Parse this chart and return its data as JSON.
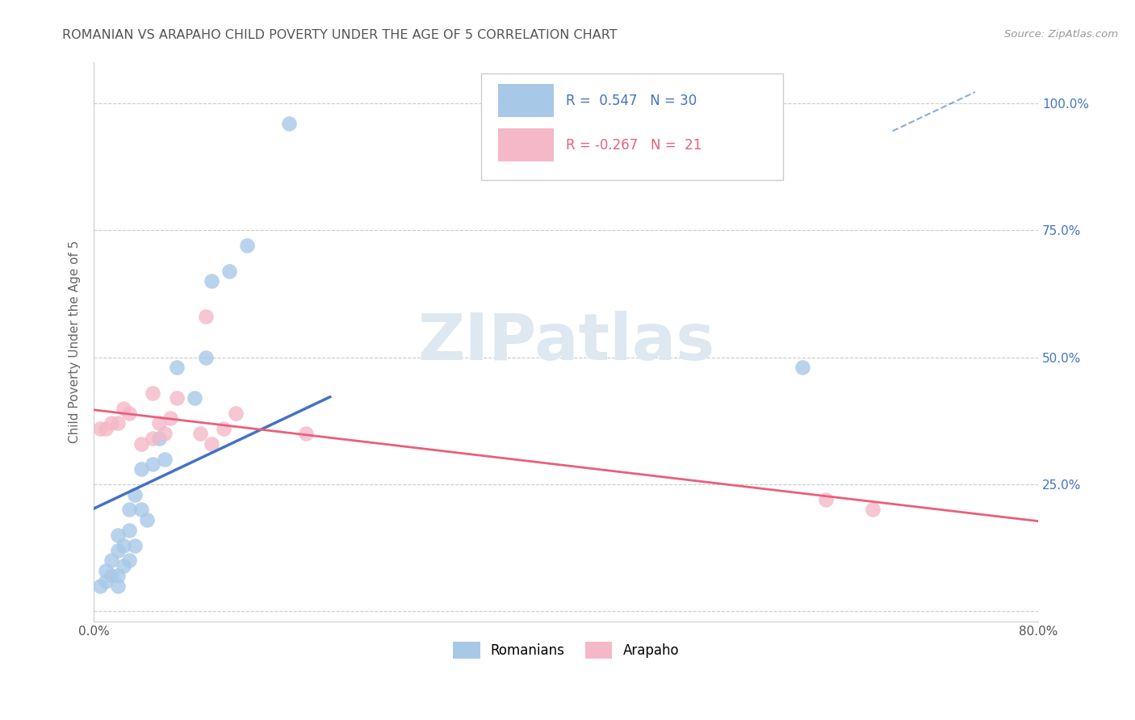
{
  "title": "ROMANIAN VS ARAPAHO CHILD POVERTY UNDER THE AGE OF 5 CORRELATION CHART",
  "source": "Source: ZipAtlas.com",
  "ylabel": "Child Poverty Under the Age of 5",
  "xlim": [
    0.0,
    0.8
  ],
  "ylim": [
    -0.02,
    1.08
  ],
  "xticks": [
    0.0,
    0.2,
    0.4,
    0.6,
    0.8
  ],
  "xticklabels": [
    "0.0%",
    "",
    "",
    "",
    "80.0%"
  ],
  "yticks": [
    0.0,
    0.25,
    0.5,
    0.75,
    1.0
  ],
  "yticklabels": [
    "",
    "25.0%",
    "50.0%",
    "75.0%",
    "100.0%"
  ],
  "romanian_R": 0.547,
  "romanian_N": 30,
  "arapaho_R": -0.267,
  "arapaho_N": 21,
  "romanian_color": "#a8c8e8",
  "arapaho_color": "#f4b8c8",
  "romanian_line_color": "#4472c4",
  "arapaho_line_color": "#e8607a",
  "grid_color": "#cccccc",
  "romanian_x": [
    0.005,
    0.01,
    0.01,
    0.015,
    0.015,
    0.02,
    0.02,
    0.02,
    0.02,
    0.025,
    0.025,
    0.03,
    0.03,
    0.03,
    0.035,
    0.035,
    0.04,
    0.04,
    0.045,
    0.05,
    0.055,
    0.06,
    0.07,
    0.085,
    0.095,
    0.1,
    0.115,
    0.13,
    0.165,
    0.6
  ],
  "romanian_y": [
    0.05,
    0.06,
    0.08,
    0.07,
    0.1,
    0.05,
    0.07,
    0.12,
    0.15,
    0.09,
    0.13,
    0.1,
    0.16,
    0.2,
    0.13,
    0.23,
    0.2,
    0.28,
    0.18,
    0.29,
    0.34,
    0.3,
    0.48,
    0.42,
    0.5,
    0.65,
    0.67,
    0.72,
    0.96,
    0.48
  ],
  "arapaho_x": [
    0.005,
    0.01,
    0.015,
    0.02,
    0.025,
    0.03,
    0.04,
    0.05,
    0.05,
    0.055,
    0.06,
    0.065,
    0.07,
    0.09,
    0.095,
    0.1,
    0.11,
    0.12,
    0.18,
    0.62,
    0.66
  ],
  "arapaho_y": [
    0.36,
    0.36,
    0.37,
    0.37,
    0.4,
    0.39,
    0.33,
    0.34,
    0.43,
    0.37,
    0.35,
    0.38,
    0.42,
    0.35,
    0.58,
    0.33,
    0.36,
    0.39,
    0.35,
    0.22,
    0.2
  ]
}
